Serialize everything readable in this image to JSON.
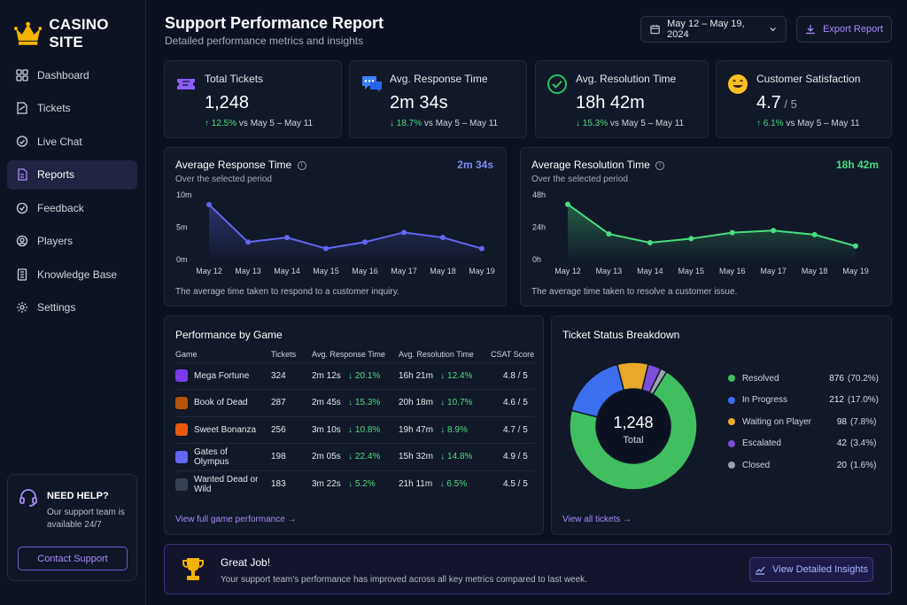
{
  "brand": {
    "name": "CASINO SITE"
  },
  "sidebar": {
    "items": [
      {
        "label": "Dashboard",
        "icon": "grid-icon",
        "active": false
      },
      {
        "label": "Tickets",
        "icon": "ticket-icon",
        "active": false
      },
      {
        "label": "Live Chat",
        "icon": "chat-icon",
        "active": false
      },
      {
        "label": "Reports",
        "icon": "document-icon",
        "active": true
      },
      {
        "label": "Feedback",
        "icon": "feedback-icon",
        "active": false
      },
      {
        "label": "Players",
        "icon": "players-icon",
        "active": false
      },
      {
        "label": "Knowledge Base",
        "icon": "book-icon",
        "active": false
      },
      {
        "label": "Settings",
        "icon": "gear-icon",
        "active": false
      }
    ],
    "help": {
      "title": "NEED HELP?",
      "text": "Our support team is available 24/7",
      "button": "Contact Support"
    }
  },
  "header": {
    "title": "Support Performance Report",
    "subtitle": "Detailed performance metrics and insights",
    "date_range": "May 12 – May 19, 2024",
    "export_label": "Export Report"
  },
  "kpis": [
    {
      "label": "Total Tickets",
      "value": "1,248",
      "suffix": "",
      "delta": "↑ 12.5%",
      "compare": "vs May 5 – May 11",
      "icon": "ticket-icon",
      "color": "#8b5cf6"
    },
    {
      "label": "Avg. Response Time",
      "value": "2m 34s",
      "suffix": "",
      "delta": "↓ 18.7%",
      "compare": "vs May 5 – May 11",
      "icon": "chat-icon",
      "color": "#3b82f6"
    },
    {
      "label": "Avg. Resolution Time",
      "value": "18h 42m",
      "suffix": "",
      "delta": "↓ 15.3%",
      "compare": "vs May 5 – May 11",
      "icon": "check-circle-icon",
      "color": "#22c55e"
    },
    {
      "label": "Customer Satisfaction",
      "value": "4.7",
      "suffix": " / 5",
      "delta": "↑ 6.1%",
      "compare": "vs May 5 – May 11",
      "icon": "smiley-icon",
      "color": "#fbbf24"
    }
  ],
  "response_chart": {
    "title": "Average Response Time",
    "subtitle": "Over the selected period",
    "headline": "2m 34s",
    "note": "The average time taken to respond to a customer inquiry.",
    "color": "#6366f1"
  },
  "resolution_chart": {
    "title": "Average Resolution Time",
    "subtitle": "Over the selected period",
    "headline": "18h 42m",
    "note": "The average time taken to resolve a customer issue.",
    "color": "#4ade80"
  },
  "chart_data": [
    {
      "type": "line",
      "x": [
        "May 12",
        "May 13",
        "May 14",
        "May 15",
        "May 16",
        "May 17",
        "May 18",
        "May 19"
      ],
      "series": [
        {
          "values": [
            8.5,
            2.7,
            3.4,
            1.7,
            2.7,
            4.2,
            3.4,
            1.7
          ]
        }
      ],
      "yticks": [
        "0m",
        "5m",
        "10m"
      ],
      "ylim": [
        0,
        10
      ],
      "grid": false
    },
    {
      "type": "line",
      "x": [
        "May 12",
        "May 13",
        "May 14",
        "May 15",
        "May 16",
        "May 17",
        "May 18",
        "May 19"
      ],
      "series": [
        {
          "values": [
            41,
            19,
            12.5,
            15.5,
            20,
            21.5,
            18.5,
            10
          ]
        }
      ],
      "yticks": [
        "0h",
        "24h",
        "48h"
      ],
      "ylim": [
        0,
        48
      ],
      "grid": false
    },
    {
      "type": "pie",
      "categories": [
        "Resolved",
        "In Progress",
        "Waiting on Player",
        "Escalated",
        "Closed"
      ],
      "values": [
        876,
        212,
        98,
        42,
        20
      ],
      "percent_labels": [
        "(70.2%)",
        "(17.0%)",
        "(7.8%)",
        "(3.4%)",
        "(1.6%)"
      ],
      "colors": [
        "#3fbf5f",
        "#3b6ff0",
        "#e8a82a",
        "#7c4ddb",
        "#9ca3af"
      ],
      "center_value": "1,248",
      "center_label": "Total"
    }
  ],
  "games": {
    "title": "Performance by Game",
    "columns": [
      "Game",
      "Tickets",
      "Avg. Response Time",
      "Avg. Resolution Time",
      "CSAT Score"
    ],
    "rows": [
      {
        "game": "Mega Fortune",
        "tickets": "324",
        "resp": "2m 12s",
        "resp_delta": "↓ 20.1%",
        "res": "16h 21m",
        "res_delta": "↓ 12.4%",
        "csat": "4.8 / 5",
        "icon_color": "#7c3aed",
        "csat_level": "good"
      },
      {
        "game": "Book of Dead",
        "tickets": "287",
        "resp": "2m 45s",
        "resp_delta": "↓ 15.3%",
        "res": "20h 18m",
        "res_delta": "↓ 10.7%",
        "csat": "4.6 / 5",
        "icon_color": "#b45309",
        "csat_level": "good"
      },
      {
        "game": "Sweet Bonanza",
        "tickets": "256",
        "resp": "3m 10s",
        "resp_delta": "↓ 10.8%",
        "res": "19h 47m",
        "res_delta": "↓ 8.9%",
        "csat": "4.7 / 5",
        "icon_color": "#ea580c",
        "csat_level": "good"
      },
      {
        "game": "Gates of Olympus",
        "tickets": "198",
        "resp": "2m 05s",
        "resp_delta": "↓ 22.4%",
        "res": "15h 32m",
        "res_delta": "↓ 14.8%",
        "csat": "4.9 / 5",
        "icon_color": "#6366f1",
        "csat_level": "good"
      },
      {
        "game": "Wanted Dead or Wild",
        "tickets": "183",
        "resp": "3m 22s",
        "resp_delta": "↓ 5.2%",
        "res": "21h 11m",
        "res_delta": "↓ 6.5%",
        "csat": "4.5 / 5",
        "icon_color": "#374151",
        "csat_level": "mid"
      }
    ],
    "link": "View full game performance →"
  },
  "status": {
    "title": "Ticket Status Breakdown",
    "link": "View all tickets →"
  },
  "banner": {
    "title": "Great Job!",
    "text": "Your support team's performance has improved across all key metrics compared to last week.",
    "button": "View Detailed Insights"
  }
}
